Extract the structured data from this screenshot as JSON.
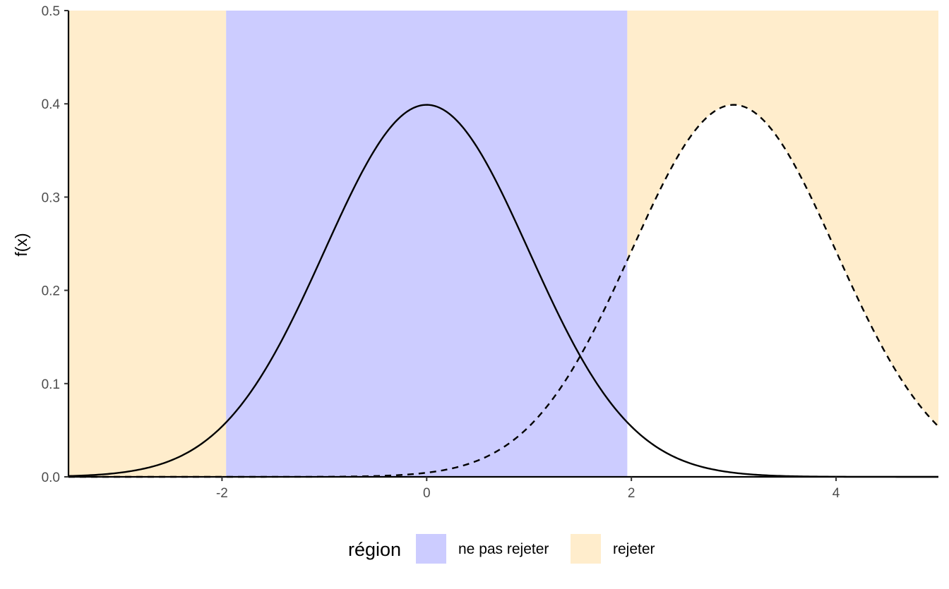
{
  "chart_data": {
    "type": "line",
    "title": "",
    "xlabel": "",
    "ylabel": "f(x)",
    "xlim": [
      -3.5,
      5
    ],
    "ylim": [
      0,
      0.5
    ],
    "x_ticks": [
      -2,
      0,
      2,
      4
    ],
    "x_tick_labels": [
      "-2",
      "0",
      "2",
      "4"
    ],
    "y_ticks": [
      0,
      0.1,
      0.2,
      0.3,
      0.4,
      0.5
    ],
    "y_tick_labels": [
      "0.0",
      "0.1",
      "0.2",
      "0.3",
      "0.4",
      "0.5"
    ],
    "grid": false,
    "regions": [
      {
        "from": -3.5,
        "to": -1.96,
        "category": "rejeter"
      },
      {
        "from": -1.96,
        "to": 1.96,
        "category": "ne pas rejeter"
      },
      {
        "from": 1.96,
        "to": 5,
        "category": "rejeter",
        "filled_above_curve": "alternative"
      }
    ],
    "curves": [
      {
        "id": "null",
        "distribution": "normal",
        "mean": 0,
        "sd": 1,
        "linestyle": "solid",
        "color": "#000000"
      },
      {
        "id": "alternative",
        "distribution": "normal",
        "mean": 3,
        "sd": 1,
        "linestyle": "dashed",
        "color": "#000000"
      }
    ],
    "legend": {
      "title": "région",
      "position": "bottom",
      "entries": [
        {
          "label": "ne pas rejeter",
          "color": "#CCCCFF"
        },
        {
          "label": "rejeter",
          "color": "#FFEDCC"
        }
      ]
    }
  }
}
